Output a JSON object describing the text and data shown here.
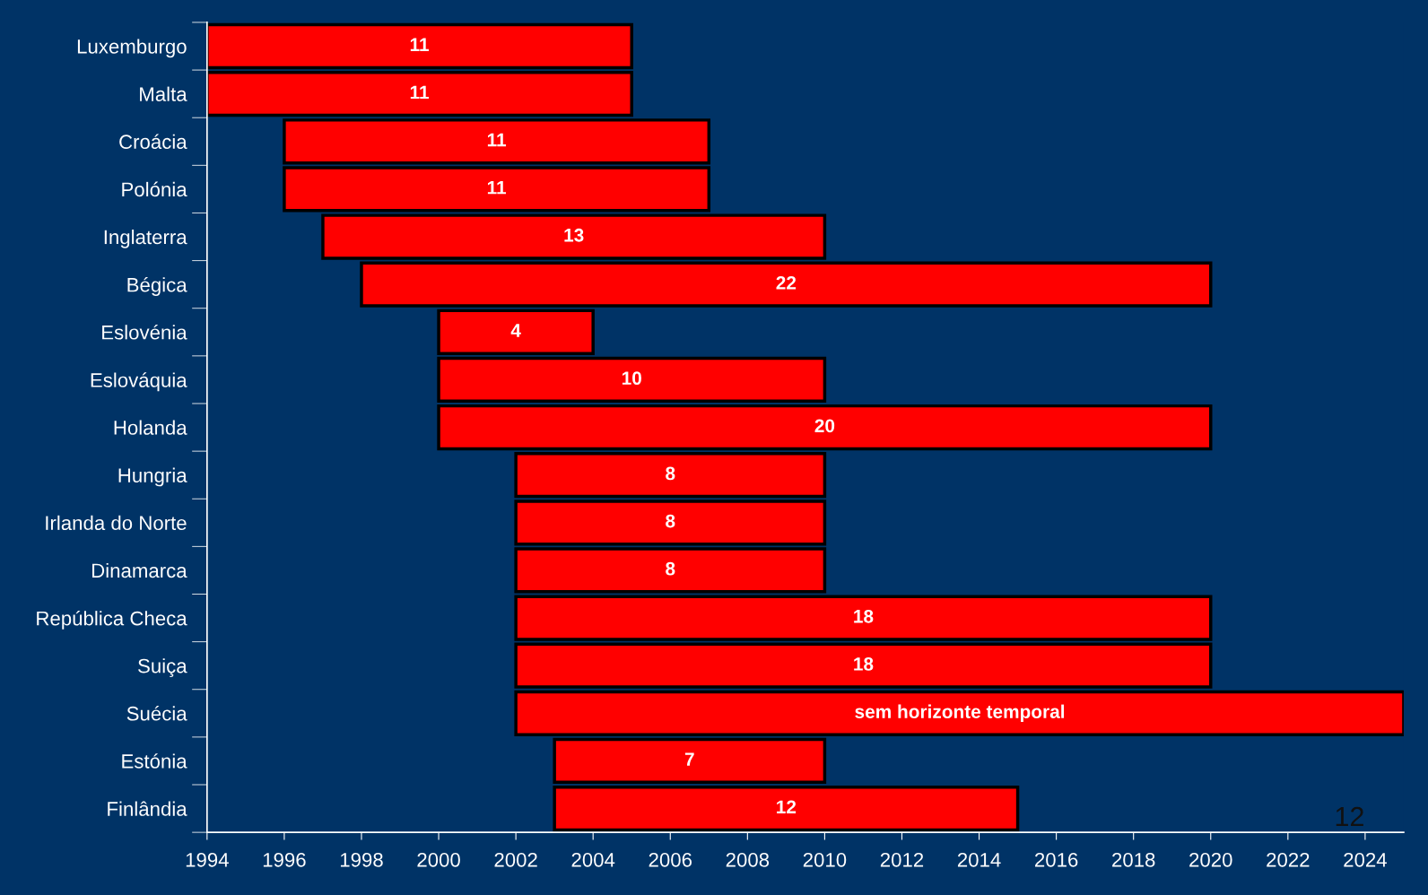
{
  "chart_data": {
    "type": "bar",
    "orientation": "horizontal",
    "categories": [
      "Luxemburgo",
      "Malta",
      "Croácia",
      "Polónia",
      "Inglaterra",
      "Bégica",
      "Eslovénia",
      "Eslováquia",
      "Holanda",
      "Hungria",
      "Irlanda do Norte",
      "Dinamarca",
      "República Checa",
      "Suiça",
      "Suécia",
      "Estónia",
      "Finlândia"
    ],
    "base": [
      1994,
      1994,
      1996,
      1996,
      1997,
      1998,
      2000,
      2000,
      2000,
      2002,
      2002,
      2002,
      2002,
      2002,
      2002,
      2003,
      2003
    ],
    "values": [
      11,
      11,
      11,
      11,
      13,
      22,
      4,
      10,
      20,
      8,
      8,
      8,
      18,
      18,
      23,
      7,
      12
    ],
    "value_labels": [
      "11",
      "11",
      "11",
      "11",
      "13",
      "22",
      "4",
      "10",
      "20",
      "8",
      "8",
      "8",
      "18",
      "18",
      "sem horizonte temporal",
      "7",
      "12"
    ],
    "color": "#ff0000",
    "xlim": [
      1994,
      2025
    ],
    "xticks": [
      1994,
      1996,
      1998,
      2000,
      2002,
      2004,
      2006,
      2008,
      2010,
      2012,
      2014,
      2016,
      2018,
      2020,
      2022,
      2024
    ],
    "grid": false,
    "annotations": [
      "12"
    ]
  }
}
